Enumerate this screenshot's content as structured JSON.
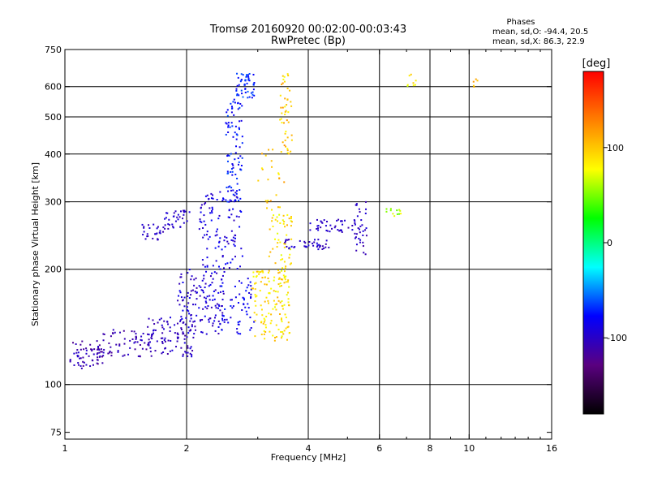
{
  "chart_data": {
    "type": "scatter",
    "title": "Tromsø 20160920 00:02:00-00:03:43",
    "subtitle": "RwPretec (Bp)",
    "xlabel": "Frequency [MHz]",
    "ylabel": "Stationary phase Virtual Height [km]",
    "x_scale": "log2",
    "y_scale": "log",
    "xlim": [
      1,
      16
    ],
    "ylim": [
      72,
      750
    ],
    "x_ticks": [
      1,
      2,
      4,
      6,
      8,
      10,
      16
    ],
    "x_tick_labels": [
      "1",
      "2",
      "4",
      "6",
      "8",
      "10",
      "16"
    ],
    "x_gridlines": [
      2,
      4,
      6,
      8,
      10
    ],
    "y_ticks": [
      75,
      100,
      200,
      300,
      400,
      500,
      600,
      750
    ],
    "y_tick_labels": [
      "75",
      "100",
      "200",
      "300",
      "400",
      "500",
      "600",
      "750"
    ],
    "y_gridlines": [
      100,
      200,
      300,
      400,
      500,
      600
    ],
    "grid": true,
    "stats": {
      "heading": "Phases",
      "line_o": "mean, sd,O: -94.4, 20.5",
      "line_x": "mean, sd,X:  86.3, 22.9"
    },
    "colorbar": {
      "label": "[deg]",
      "range": [
        -180,
        180
      ],
      "ticks": [
        -100,
        0,
        100
      ],
      "tick_labels": [
        "-100",
        "0",
        "100"
      ],
      "colormap": [
        "#000000",
        "#5a0080",
        "#0000ff",
        "#00ffff",
        "#00ff00",
        "#ffff00",
        "#ff8000",
        "#ff0000"
      ]
    },
    "clusters": [
      {
        "f": [
          1.03,
          1.25
        ],
        "h": [
          110,
          130
        ],
        "n": 60,
        "phase": [
          -125,
          -95
        ]
      },
      {
        "f": [
          1.2,
          1.65
        ],
        "h": [
          118,
          140
        ],
        "n": 70,
        "phase": [
          -120,
          -95
        ]
      },
      {
        "f": [
          1.6,
          2.1
        ],
        "h": [
          118,
          150
        ],
        "n": 90,
        "phase": [
          -115,
          -90
        ]
      },
      {
        "f": [
          1.9,
          2.5
        ],
        "h": [
          135,
          200
        ],
        "n": 140,
        "phase": [
          -110,
          -80
        ]
      },
      {
        "f": [
          2.15,
          2.75
        ],
        "h": [
          200,
          320
        ],
        "n": 110,
        "phase": [
          -105,
          -75
        ]
      },
      {
        "f": [
          2.5,
          2.75
        ],
        "h": [
          300,
          560
        ],
        "n": 90,
        "phase": [
          -90,
          -60
        ]
      },
      {
        "f": [
          2.65,
          2.95
        ],
        "h": [
          560,
          650
        ],
        "n": 50,
        "phase": [
          -85,
          -55
        ]
      },
      {
        "f": [
          2.4,
          2.95
        ],
        "h": [
          135,
          190
        ],
        "n": 60,
        "phase": [
          -95,
          -70
        ]
      },
      {
        "f": [
          1.55,
          1.75
        ],
        "h": [
          238,
          262
        ],
        "n": 25,
        "phase": [
          -110,
          -90
        ]
      },
      {
        "f": [
          1.75,
          2.05
        ],
        "h": [
          255,
          285
        ],
        "n": 35,
        "phase": [
          -110,
          -90
        ]
      },
      {
        "f": [
          2.9,
          3.6
        ],
        "h": [
          130,
          200
        ],
        "n": 140,
        "phase": [
          70,
          110
        ]
      },
      {
        "f": [
          3.2,
          3.65
        ],
        "h": [
          200,
          280
        ],
        "n": 50,
        "phase": [
          70,
          110
        ]
      },
      {
        "f": [
          3.4,
          3.65
        ],
        "h": [
          400,
          650
        ],
        "n": 45,
        "phase": [
          75,
          120
        ]
      },
      {
        "f": [
          3.0,
          3.5
        ],
        "h": [
          280,
          420
        ],
        "n": 25,
        "phase": [
          80,
          120
        ]
      },
      {
        "f": [
          3.5,
          4.5
        ],
        "h": [
          225,
          240
        ],
        "n": 40,
        "phase": [
          -110,
          -90
        ]
      },
      {
        "f": [
          4.0,
          5.5
        ],
        "h": [
          250,
          270
        ],
        "n": 40,
        "phase": [
          -110,
          -90
        ]
      },
      {
        "f": [
          5.2,
          5.6
        ],
        "h": [
          215,
          300
        ],
        "n": 35,
        "phase": [
          -115,
          -90
        ]
      },
      {
        "f": [
          6.2,
          6.8
        ],
        "h": [
          275,
          290
        ],
        "n": 12,
        "phase": [
          40,
          80
        ]
      },
      {
        "f": [
          7.0,
          7.4
        ],
        "h": [
          600,
          650
        ],
        "n": 8,
        "phase": [
          60,
          100
        ]
      },
      {
        "f": [
          10.2,
          10.5
        ],
        "h": [
          590,
          640
        ],
        "n": 5,
        "phase": [
          80,
          120
        ]
      }
    ]
  }
}
